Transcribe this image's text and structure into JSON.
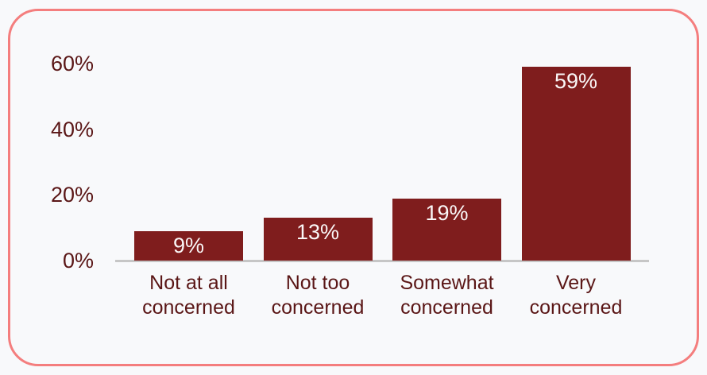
{
  "chart_data": {
    "type": "bar",
    "title": "",
    "xlabel": "",
    "ylabel": "",
    "categories": [
      "Not at all\nconcerned",
      "Not too\nconcerned",
      "Somewhat\nconcerned",
      "Very\nconcerned"
    ],
    "values": [
      9,
      13,
      19,
      59
    ],
    "value_labels": [
      "9%",
      "13%",
      "19%",
      "59%"
    ],
    "y_ticks": [
      {
        "value": 0,
        "label": "0%"
      },
      {
        "value": 20,
        "label": "20%"
      },
      {
        "value": 40,
        "label": "40%"
      },
      {
        "value": 60,
        "label": "60%"
      }
    ],
    "ylim": [
      0,
      65
    ],
    "grid": false,
    "legend": "none",
    "colors": {
      "bar_fill": "#7f1d1d",
      "bar_value_text": "#faf7f7",
      "axis_text": "#5a1616",
      "axis_line": "#c6c6c6",
      "card_border": "#f47e7e",
      "background": "#f8f9fb"
    }
  }
}
